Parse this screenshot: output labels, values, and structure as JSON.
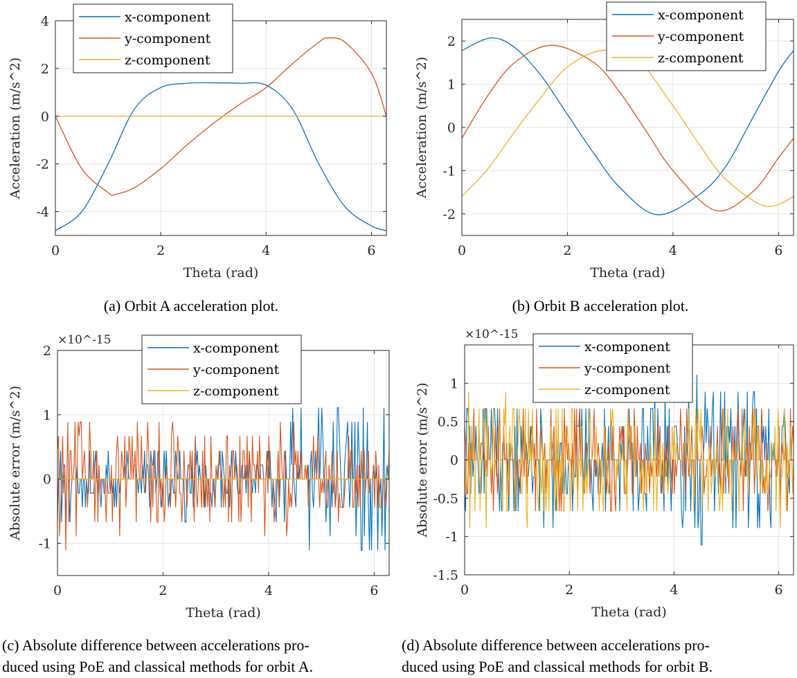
{
  "chart_data": [
    {
      "type": "line",
      "id": "a",
      "xlabel": "Theta (rad)",
      "ylabel": "Acceleration (m/s^2)",
      "xlim": [
        0,
        6.2832
      ],
      "ylim": [
        -5,
        4
      ],
      "xticks": [
        0,
        2,
        4,
        6
      ],
      "yticks": [
        -4,
        -2,
        0,
        2,
        4
      ],
      "ytick_labels": [
        "-4",
        "-2",
        "0",
        "2",
        "4"
      ],
      "grid": true,
      "legend": "top-left",
      "caption": "(a) Orbit A acceleration plot.",
      "series": [
        {
          "name": "x-component",
          "color": "#0072BD",
          "x": [
            0,
            0.5,
            1.0,
            1.5,
            2.0,
            2.5,
            3.0,
            3.5,
            4.0,
            4.5,
            5.0,
            5.5,
            6.0,
            6.2832
          ],
          "y": [
            -4.8,
            -4.0,
            -2.0,
            0.3,
            1.2,
            1.38,
            1.4,
            1.38,
            1.3,
            0.3,
            -2.0,
            -3.8,
            -4.6,
            -4.8
          ]
        },
        {
          "name": "y-component",
          "color": "#D95319",
          "x": [
            0,
            0.5,
            1.0,
            1.13,
            1.5,
            2.0,
            2.5,
            3.0,
            3.5,
            4.0,
            4.5,
            5.0,
            5.17,
            5.5,
            6.0,
            6.2832
          ],
          "y": [
            0,
            -2.2,
            -3.2,
            -3.28,
            -3.0,
            -2.2,
            -1.2,
            -0.3,
            0.5,
            1.2,
            2.2,
            3.1,
            3.28,
            3.1,
            1.8,
            0
          ]
        },
        {
          "name": "z-component",
          "color": "#EDB120",
          "x": [
            0,
            6.2832
          ],
          "y": [
            0,
            0
          ]
        }
      ]
    },
    {
      "type": "line",
      "id": "b",
      "xlabel": "Theta (rad)",
      "ylabel": "Acceleration (m/s^2)",
      "xlim": [
        0,
        6.2832
      ],
      "ylim": [
        -2.5,
        2.5
      ],
      "xticks": [
        0,
        2,
        4,
        6
      ],
      "yticks": [
        -2,
        -1,
        0,
        1,
        2
      ],
      "ytick_labels": [
        "-2",
        "-1",
        "0",
        "1",
        "2"
      ],
      "grid": true,
      "legend": "top-right",
      "caption": "(b) Orbit B acceleration plot.",
      "series": [
        {
          "name": "x-component",
          "color": "#0072BD",
          "x": [
            0,
            0.55,
            1.0,
            1.5,
            2.0,
            2.5,
            3.0,
            3.7,
            4.5,
            5.0,
            5.5,
            6.0,
            6.2832
          ],
          "y": [
            1.78,
            2.07,
            1.85,
            1.2,
            0.3,
            -0.6,
            -1.4,
            -2.02,
            -1.55,
            -0.9,
            0.2,
            1.3,
            1.78
          ]
        },
        {
          "name": "y-component",
          "color": "#D95319",
          "x": [
            0,
            0.5,
            1.0,
            1.7,
            2.5,
            3.0,
            3.5,
            4.0,
            4.8,
            5.5,
            6.0,
            6.2832
          ],
          "y": [
            -0.25,
            0.75,
            1.5,
            1.9,
            1.5,
            0.8,
            -0.1,
            -1.0,
            -1.92,
            -1.5,
            -0.7,
            -0.25
          ]
        },
        {
          "name": "z-component",
          "color": "#EDB120",
          "x": [
            0,
            0.5,
            1.0,
            1.5,
            2.0,
            2.65,
            3.3,
            4.0,
            4.5,
            5.0,
            5.75,
            6.2832
          ],
          "y": [
            -1.6,
            -0.95,
            -0.1,
            0.7,
            1.4,
            1.78,
            1.6,
            0.5,
            -0.4,
            -1.2,
            -1.82,
            -1.6
          ]
        }
      ]
    },
    {
      "type": "line",
      "id": "c",
      "xlabel": "Theta (rad)",
      "ylabel": "Absolute error (m/s^2)",
      "y_multiplier": "×10^-15",
      "xlim": [
        0,
        6.2832
      ],
      "ylim": [
        -1.5,
        2
      ],
      "xticks": [
        0,
        2,
        4,
        6
      ],
      "yticks": [
        -1,
        0,
        1,
        2
      ],
      "ytick_labels": [
        "-1",
        "0",
        "1",
        "2"
      ],
      "grid": true,
      "legend": "top-right",
      "caption": [
        "(c) Absolute difference between accelerations pro-",
        "duced using PoE and classical methods for orbit A."
      ],
      "noise": {
        "n": 320,
        "seed": 11,
        "series": [
          {
            "name": "x-component",
            "color": "#0072BD",
            "levels": [
              -1.11,
              -0.89,
              -0.67,
              -0.44,
              -0.22,
              0,
              0.22,
              0.44,
              0.67,
              0.89,
              1.11,
              1.33,
              1.78
            ],
            "amp_envelope": [
              [
                0,
                0.55
              ],
              [
                1.5,
                0.35
              ],
              [
                2.5,
                0.55
              ],
              [
                3.8,
                0.25
              ],
              [
                4.5,
                0.9
              ],
              [
                6.2832,
                1.0
              ]
            ]
          },
          {
            "name": "y-component",
            "color": "#D95319",
            "levels": [
              -1.33,
              -1.11,
              -0.89,
              -0.67,
              -0.44,
              -0.22,
              0,
              0.22,
              0.44,
              0.67,
              0.89,
              1.33
            ],
            "amp_envelope": [
              [
                0,
                0.9
              ],
              [
                2.0,
                0.7
              ],
              [
                3.0,
                0.5
              ],
              [
                4.0,
                0.8
              ],
              [
                5.0,
                0.5
              ],
              [
                6.2832,
                0.4
              ]
            ]
          },
          {
            "name": "z-component",
            "color": "#EDB120",
            "levels": [
              0
            ],
            "amp_envelope": [
              [
                0,
                0
              ],
              [
                6.2832,
                0
              ]
            ]
          }
        ]
      }
    },
    {
      "type": "line",
      "id": "d",
      "xlabel": "Theta (rad)",
      "ylabel": "Absolute error (m/s^2)",
      "y_multiplier": "×10^-15",
      "xlim": [
        0,
        6.2832
      ],
      "ylim": [
        -1.5,
        1.5
      ],
      "xticks": [
        0,
        2,
        4,
        6
      ],
      "yticks": [
        -1.5,
        -1,
        -0.5,
        0,
        0.5,
        1
      ],
      "ytick_labels": [
        "-1.5",
        "-1",
        "-0.5",
        "0",
        "0.5",
        "1"
      ],
      "grid": true,
      "legend": "top-center",
      "caption": [
        "(d) Absolute difference between accelerations pro-",
        "duced using PoE and classical methods for orbit B."
      ],
      "noise": {
        "n": 320,
        "seed": 29,
        "series": [
          {
            "name": "x-component",
            "color": "#0072BD",
            "levels": [
              -1.11,
              -0.89,
              -0.67,
              -0.44,
              -0.22,
              0,
              0.22,
              0.44,
              0.67,
              0.89,
              1.11,
              1.33
            ],
            "amp_envelope": [
              [
                0,
                0.6
              ],
              [
                2.0,
                0.7
              ],
              [
                3.0,
                0.5
              ],
              [
                4.5,
                0.9
              ],
              [
                5.5,
                0.8
              ],
              [
                6.2832,
                0.5
              ]
            ]
          },
          {
            "name": "y-component",
            "color": "#D95319",
            "levels": [
              -0.67,
              -0.44,
              -0.22,
              0,
              0.22,
              0.44,
              0.67,
              0.89,
              1.11
            ],
            "amp_envelope": [
              [
                0,
                0.45
              ],
              [
                2.0,
                0.55
              ],
              [
                4.0,
                0.5
              ],
              [
                6.2832,
                0.6
              ]
            ]
          },
          {
            "name": "z-component",
            "color": "#EDB120",
            "levels": [
              -1.11,
              -0.89,
              -0.67,
              -0.44,
              -0.22,
              0,
              0.22,
              0.44,
              0.67,
              0.89
            ],
            "amp_envelope": [
              [
                0,
                0.75
              ],
              [
                2.0,
                0.55
              ],
              [
                4.0,
                0.6
              ],
              [
                6.2832,
                0.65
              ]
            ]
          }
        ]
      }
    }
  ]
}
